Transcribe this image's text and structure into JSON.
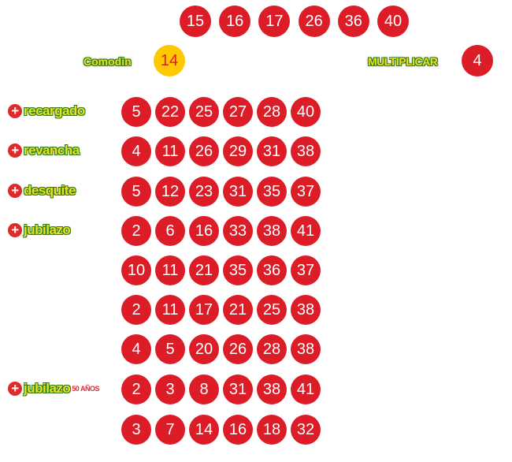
{
  "main_numbers": [
    "15",
    "16",
    "17",
    "26",
    "36",
    "40"
  ],
  "comodin": {
    "label": "Comodin",
    "value": "14"
  },
  "multiplicar": {
    "label": "MULTIPLICAR",
    "value": "4"
  },
  "games": [
    {
      "label": "recargado",
      "numbers": [
        "5",
        "22",
        "25",
        "27",
        "28",
        "40"
      ]
    },
    {
      "label": "revancha",
      "numbers": [
        "4",
        "11",
        "26",
        "29",
        "31",
        "38"
      ]
    },
    {
      "label": "desquite",
      "numbers": [
        "5",
        "12",
        "23",
        "31",
        "35",
        "37"
      ]
    },
    {
      "label": "jubilazo",
      "numbers": [
        "2",
        "6",
        "16",
        "33",
        "38",
        "41"
      ]
    },
    {
      "label": "",
      "numbers": [
        "10",
        "11",
        "21",
        "35",
        "36",
        "37"
      ]
    },
    {
      "label": "",
      "numbers": [
        "2",
        "11",
        "17",
        "21",
        "25",
        "38"
      ]
    },
    {
      "label": "",
      "numbers": [
        "4",
        "5",
        "20",
        "26",
        "28",
        "38"
      ]
    },
    {
      "label": "jubilazo",
      "badge": "50 AÑOS",
      "numbers": [
        "2",
        "3",
        "8",
        "31",
        "38",
        "41"
      ]
    },
    {
      "label": "",
      "numbers": [
        "3",
        "7",
        "14",
        "16",
        "18",
        "32"
      ]
    }
  ],
  "colors": {
    "ball": "#dc1c27",
    "comodin_ball": "#ffc800",
    "comodin_text": "#dc1c27"
  }
}
